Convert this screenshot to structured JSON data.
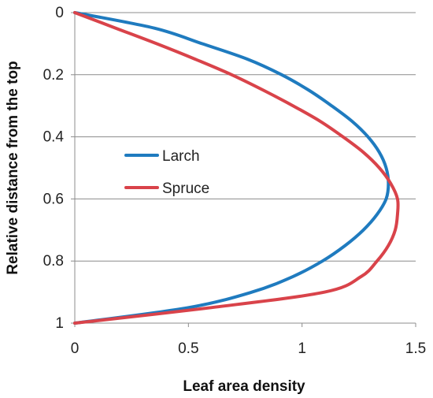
{
  "chart_data": {
    "type": "line",
    "xlabel": "Leaf area density",
    "ylabel": "Relative distance from the top",
    "xlim": [
      0,
      1.5
    ],
    "ylim": [
      0,
      1
    ],
    "y_inverted": true,
    "x_ticks": [
      {
        "value": 0,
        "label": "0"
      },
      {
        "value": 0.5,
        "label": "0.5"
      },
      {
        "value": 1,
        "label": "1"
      },
      {
        "value": 1.5,
        "label": "1.5"
      }
    ],
    "y_ticks": [
      {
        "value": 0,
        "label": "0"
      },
      {
        "value": 0.2,
        "label": "0.2"
      },
      {
        "value": 0.4,
        "label": "0.4"
      },
      {
        "value": 0.6,
        "label": "0.6"
      },
      {
        "value": 0.8,
        "label": "0.8"
      },
      {
        "value": 1,
        "label": "1"
      }
    ],
    "grid": "horizontal",
    "legend_position": "left-middle",
    "series": [
      {
        "name": "Larch",
        "color": "#1f7bbf",
        "points": [
          [
            0,
            0
          ],
          [
            0.35,
            0.05
          ],
          [
            0.56,
            0.1
          ],
          [
            0.76,
            0.15
          ],
          [
            0.91,
            0.2
          ],
          [
            1.03,
            0.25
          ],
          [
            1.13,
            0.3
          ],
          [
            1.22,
            0.35
          ],
          [
            1.29,
            0.4
          ],
          [
            1.34,
            0.45
          ],
          [
            1.37,
            0.5
          ],
          [
            1.38,
            0.55
          ],
          [
            1.37,
            0.6
          ],
          [
            1.33,
            0.65
          ],
          [
            1.27,
            0.7
          ],
          [
            1.19,
            0.75
          ],
          [
            1.09,
            0.8
          ],
          [
            0.96,
            0.85
          ],
          [
            0.78,
            0.9
          ],
          [
            0.5,
            0.95
          ],
          [
            0,
            1.0
          ]
        ]
      },
      {
        "name": "Spruce",
        "color": "#d9434a",
        "points": [
          [
            0,
            0
          ],
          [
            0.18,
            0.05
          ],
          [
            0.36,
            0.1
          ],
          [
            0.53,
            0.15
          ],
          [
            0.69,
            0.2
          ],
          [
            0.83,
            0.25
          ],
          [
            0.96,
            0.3
          ],
          [
            1.08,
            0.35
          ],
          [
            1.18,
            0.4
          ],
          [
            1.27,
            0.45
          ],
          [
            1.34,
            0.5
          ],
          [
            1.39,
            0.55
          ],
          [
            1.42,
            0.6
          ],
          [
            1.42,
            0.65
          ],
          [
            1.41,
            0.7
          ],
          [
            1.38,
            0.75
          ],
          [
            1.33,
            0.8
          ],
          [
            1.26,
            0.85
          ],
          [
            1.1,
            0.9
          ],
          [
            0.6,
            0.95
          ],
          [
            0,
            1.0
          ]
        ]
      }
    ]
  }
}
